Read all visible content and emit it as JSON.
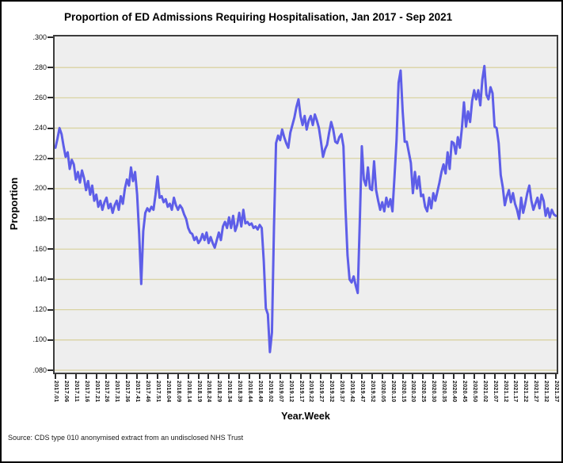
{
  "source_note": "Source: CDS type 010 anonymised extract from an undisclosed NHS Trust",
  "chart_data": {
    "type": "line",
    "title": "Proportion of ED Admissions Requiring Hospitalisation, Jan 2017 - Sep 2021",
    "xlabel": "Year.Week",
    "ylabel": "Proportion",
    "ylim": [
      0.08,
      0.3
    ],
    "y_tick_step": 0.02,
    "y_tick_labels": [
      ".300",
      ".280",
      ".260",
      ".240",
      ".220",
      ".200",
      ".180",
      ".160",
      ".140",
      ".120",
      ".100",
      ".080"
    ],
    "x_tick_every": 5,
    "x_tick_labels": [
      "2017.01",
      "2017.06",
      "2017.11",
      "2017.16",
      "2017.21",
      "2017.26",
      "2017.31",
      "2017.36",
      "2017.41",
      "2017.46",
      "2017.51",
      "2018.04",
      "2018.09",
      "2018.14",
      "2018.19",
      "2018.24",
      "2018.29",
      "2018.34",
      "2018.39",
      "2018.44",
      "2018.49",
      "2019.02",
      "2019.07",
      "2019.12",
      "2019.17",
      "2019.22",
      "2019.27",
      "2019.32",
      "2019.37",
      "2019.42",
      "2019.47",
      "2019.52",
      "2020.05",
      "2020.10",
      "2020.15",
      "2020.20",
      "2020.25",
      "2020.30",
      "2020.35",
      "2020.40",
      "2020.45",
      "2020.50",
      "2021.02",
      "2021.07",
      "2021.12",
      "2021.17",
      "2021.22",
      "2021.27",
      "2021.32",
      "2021.37"
    ],
    "x_weeks_per_year": {
      "2017": 52,
      "2018": 52,
      "2019": 52,
      "2020": 53,
      "2021": 37
    },
    "x_first": "2017.01",
    "x_last": "2021.37",
    "grid": "horizontal",
    "legend": "none",
    "series_name": "Proportion of ED admissions requiring hospitalisation",
    "colors": {
      "line": "#5e5ee8",
      "plot_background": "#eeeeee",
      "gridline": "#d9d3a2",
      "plot_border": "#3d3d3d",
      "page_background": "#ffffff",
      "outer_border": "#000000",
      "text": "#000000"
    },
    "values": [
      0.227,
      0.233,
      0.24,
      0.236,
      0.228,
      0.221,
      0.224,
      0.213,
      0.219,
      0.216,
      0.206,
      0.211,
      0.204,
      0.212,
      0.207,
      0.199,
      0.205,
      0.196,
      0.202,
      0.192,
      0.196,
      0.188,
      0.192,
      0.186,
      0.191,
      0.194,
      0.187,
      0.19,
      0.184,
      0.189,
      0.192,
      0.186,
      0.195,
      0.19,
      0.2,
      0.206,
      0.202,
      0.214,
      0.205,
      0.211,
      0.196,
      0.17,
      0.137,
      0.172,
      0.184,
      0.187,
      0.185,
      0.188,
      0.186,
      0.196,
      0.208,
      0.194,
      0.195,
      0.191,
      0.193,
      0.188,
      0.19,
      0.186,
      0.194,
      0.189,
      0.186,
      0.189,
      0.187,
      0.183,
      0.18,
      0.174,
      0.171,
      0.17,
      0.166,
      0.168,
      0.164,
      0.166,
      0.17,
      0.166,
      0.171,
      0.164,
      0.168,
      0.164,
      0.161,
      0.166,
      0.171,
      0.166,
      0.175,
      0.178,
      0.174,
      0.181,
      0.174,
      0.182,
      0.172,
      0.176,
      0.184,
      0.175,
      0.186,
      0.177,
      0.178,
      0.176,
      0.177,
      0.174,
      0.175,
      0.173,
      0.176,
      0.174,
      0.152,
      0.121,
      0.117,
      0.092,
      0.105,
      0.175,
      0.23,
      0.235,
      0.232,
      0.239,
      0.234,
      0.23,
      0.227,
      0.237,
      0.242,
      0.247,
      0.254,
      0.259,
      0.248,
      0.242,
      0.248,
      0.239,
      0.245,
      0.248,
      0.242,
      0.249,
      0.245,
      0.24,
      0.231,
      0.221,
      0.226,
      0.229,
      0.237,
      0.244,
      0.239,
      0.231,
      0.23,
      0.234,
      0.236,
      0.228,
      0.187,
      0.156,
      0.14,
      0.138,
      0.142,
      0.136,
      0.131,
      0.178,
      0.228,
      0.206,
      0.202,
      0.214,
      0.2,
      0.199,
      0.218,
      0.199,
      0.192,
      0.186,
      0.191,
      0.185,
      0.194,
      0.188,
      0.193,
      0.185,
      0.208,
      0.232,
      0.27,
      0.278,
      0.251,
      0.231,
      0.231,
      0.224,
      0.217,
      0.197,
      0.211,
      0.2,
      0.208,
      0.195,
      0.196,
      0.188,
      0.185,
      0.194,
      0.187,
      0.197,
      0.192,
      0.198,
      0.204,
      0.211,
      0.216,
      0.21,
      0.224,
      0.213,
      0.231,
      0.23,
      0.223,
      0.234,
      0.227,
      0.24,
      0.257,
      0.241,
      0.251,
      0.244,
      0.258,
      0.265,
      0.259,
      0.265,
      0.255,
      0.272,
      0.281,
      0.262,
      0.259,
      0.267,
      0.263,
      0.241,
      0.24,
      0.23,
      0.209,
      0.201,
      0.189,
      0.195,
      0.199,
      0.191,
      0.197,
      0.19,
      0.186,
      0.18,
      0.194,
      0.184,
      0.19,
      0.197,
      0.202,
      0.192,
      0.186,
      0.19,
      0.194,
      0.187,
      0.196,
      0.192,
      0.182,
      0.187,
      0.181,
      0.186,
      0.183,
      0.182
    ]
  }
}
